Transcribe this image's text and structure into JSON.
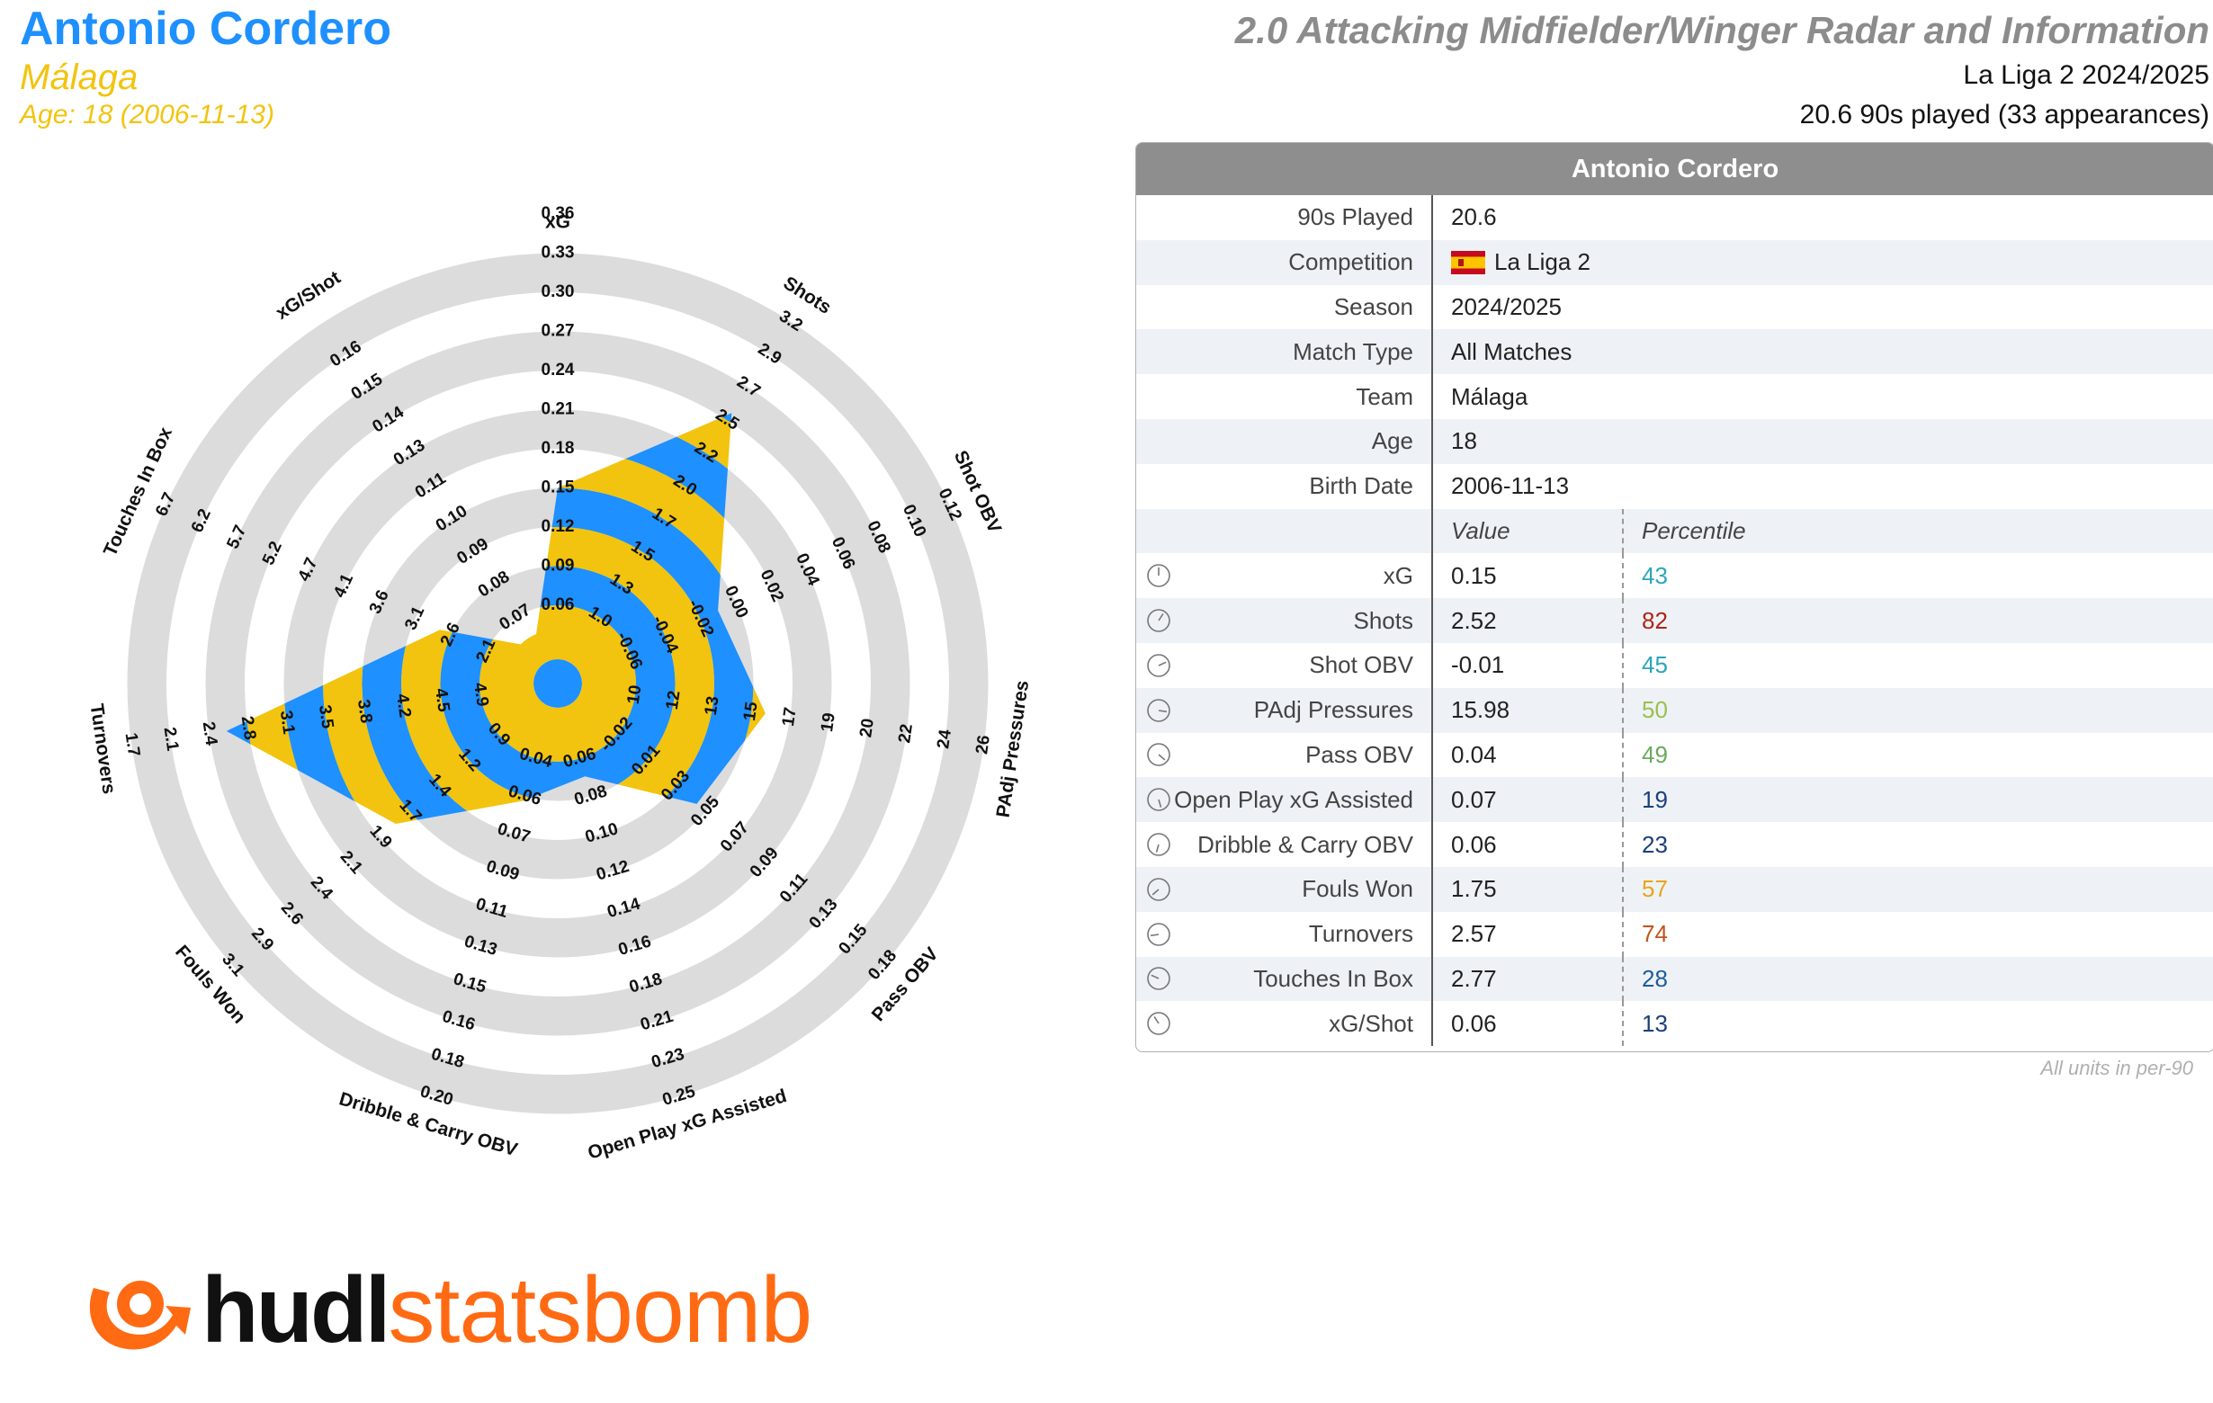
{
  "header": {
    "player_name": "Antonio Cordero",
    "team": "Málaga",
    "age_line": "Age: 18 (2006-11-13)",
    "title": "2.0 Attacking Midfielder/Winger Radar and Information",
    "competition_line": "La Liga 2 2024/2025",
    "minutes_line": "20.6 90s played (33 appearances)"
  },
  "colors": {
    "primary": "#1e90ff",
    "secondary": "#f2c40f",
    "ring": "#dcdcdc",
    "header_bg": "#8e8e8e"
  },
  "chart_data": {
    "type": "radar",
    "title": "",
    "axes": [
      {
        "label": "xG",
        "ticks": [
          "0.06",
          "0.09",
          "0.12",
          "0.15",
          "0.18",
          "0.21",
          "0.24",
          "0.27",
          "0.30",
          "0.33",
          "0.36"
        ],
        "value": 0.15
      },
      {
        "label": "Shots",
        "ticks": [
          "1.0",
          "1.3",
          "1.5",
          "1.7",
          "2.0",
          "2.2",
          "2.5",
          "2.7",
          "2.9",
          "3.2"
        ],
        "value": 2.52
      },
      {
        "label": "Shot OBV",
        "ticks": [
          "-0.06",
          "-0.04",
          "-0.02",
          "0.00",
          "0.02",
          "0.04",
          "0.06",
          "0.08",
          "0.10",
          "0.12"
        ],
        "value": -0.01
      },
      {
        "label": "PAdj Pressures",
        "ticks": [
          "10",
          "12",
          "13",
          "15",
          "17",
          "19",
          "20",
          "22",
          "24",
          "26"
        ],
        "value": 15.98
      },
      {
        "label": "Pass OBV",
        "ticks": [
          "-0.02",
          "0.01",
          "0.03",
          "0.05",
          "0.07",
          "0.09",
          "0.11",
          "0.13",
          "0.15",
          "0.18"
        ],
        "value": 0.04
      },
      {
        "label": "Open Play xG Assisted",
        "ticks": [
          "0.06",
          "0.08",
          "0.10",
          "0.12",
          "0.14",
          "0.16",
          "0.18",
          "0.21",
          "0.23",
          "0.25"
        ],
        "value": 0.07
      },
      {
        "label": "Dribble & Carry OBV",
        "ticks": [
          "0.04",
          "0.06",
          "0.07",
          "0.09",
          "0.11",
          "0.13",
          "0.15",
          "0.16",
          "0.18",
          "0.20"
        ],
        "value": 0.06
      },
      {
        "label": "Fouls Won",
        "ticks": [
          "0.9",
          "1.2",
          "1.4",
          "1.7",
          "1.9",
          "2.1",
          "2.4",
          "2.6",
          "2.9",
          "3.1"
        ],
        "value": 1.75
      },
      {
        "label": "Turnovers",
        "ticks": [
          "4.9",
          "4.5",
          "4.2",
          "3.8",
          "3.5",
          "3.1",
          "2.8",
          "2.4",
          "2.1",
          "1.7"
        ],
        "value": 2.57
      },
      {
        "label": "Touches In Box",
        "ticks": [
          "2.1",
          "2.6",
          "3.1",
          "3.6",
          "4.1",
          "4.7",
          "5.2",
          "5.7",
          "6.2",
          "6.7"
        ],
        "value": 2.77
      },
      {
        "label": "xG/Shot",
        "ticks": [
          "0.07",
          "0.08",
          "0.09",
          "0.10",
          "0.11",
          "0.13",
          "0.14",
          "0.15",
          "0.16"
        ],
        "value": 0.06
      }
    ]
  },
  "table": {
    "header": "Antonio Cordero",
    "info_rows": [
      {
        "label": "90s Played",
        "value": "20.6"
      },
      {
        "label": "Competition",
        "value": "La Liga 2",
        "flag": "spain"
      },
      {
        "label": "Season",
        "value": "2024/2025"
      },
      {
        "label": "Match Type",
        "value": "All Matches"
      },
      {
        "label": "Team",
        "value": "Málaga"
      },
      {
        "label": "Age",
        "value": "18"
      },
      {
        "label": "Birth Date",
        "value": "2006-11-13"
      }
    ],
    "col_value": "Value",
    "col_percentile": "Percentile",
    "stat_rows": [
      {
        "label": "xG",
        "value": "0.15",
        "percentile": "43",
        "color": "#2aa6b8"
      },
      {
        "label": "Shots",
        "value": "2.52",
        "percentile": "82",
        "color": "#b02418"
      },
      {
        "label": "Shot OBV",
        "value": "-0.01",
        "percentile": "45",
        "color": "#2aa6b8"
      },
      {
        "label": "PAdj Pressures",
        "value": "15.98",
        "percentile": "50",
        "color": "#9cbf4a"
      },
      {
        "label": "Pass OBV",
        "value": "0.04",
        "percentile": "49",
        "color": "#6aa95c"
      },
      {
        "label": "Open Play xG Assisted",
        "value": "0.07",
        "percentile": "19",
        "color": "#1c3f7a"
      },
      {
        "label": "Dribble & Carry OBV",
        "value": "0.06",
        "percentile": "23",
        "color": "#1c3f7a"
      },
      {
        "label": "Fouls Won",
        "value": "1.75",
        "percentile": "57",
        "color": "#e8a516"
      },
      {
        "label": "Turnovers",
        "value": "2.57",
        "percentile": "74",
        "color": "#c0541a"
      },
      {
        "label": "Touches In Box",
        "value": "2.77",
        "percentile": "28",
        "color": "#1f5c9c"
      },
      {
        "label": "xG/Shot",
        "value": "0.06",
        "percentile": "13",
        "color": "#1c3f7a"
      }
    ],
    "footnote": "All units in per-90"
  },
  "logo": {
    "part1": "hudl",
    "part2": "statsbomb",
    "color1": "#111111",
    "color2": "#ff6a13"
  }
}
